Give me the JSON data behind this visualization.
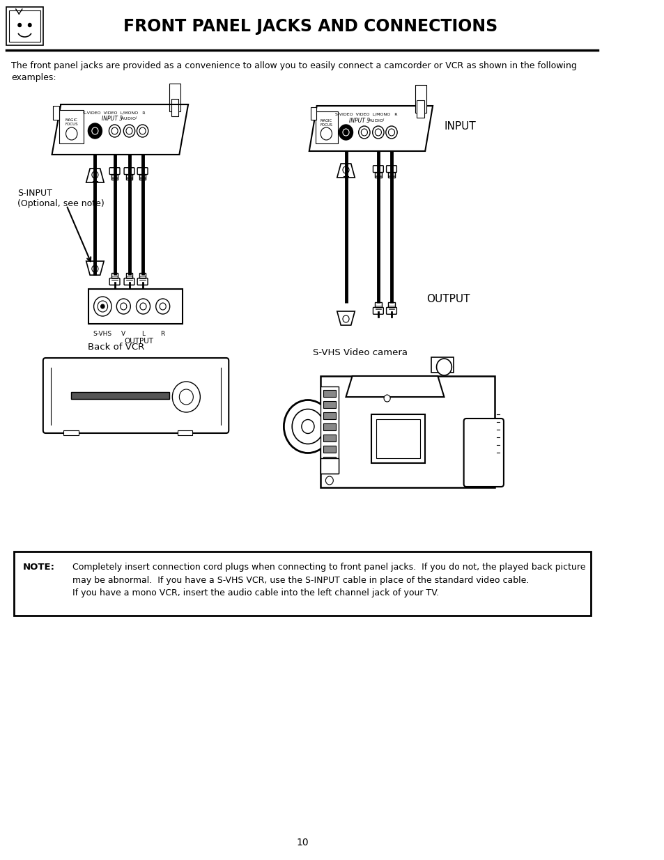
{
  "title": "FRONT PANEL JACKS AND CONNECTIONS",
  "page_number": "10",
  "intro_text": "The front panel jacks are provided as a convenience to allow you to easily connect a camcorder or VCR as shown in the following\nexamples:",
  "note_label": "NOTE:",
  "note_text": "Completely insert connection cord plugs when connecting to front panel jacks.  If you do not, the played back picture\nmay be abnormal.  If you have a S-VHS VCR, use the S-INPUT cable in place of the standard video cable.\nIf you have a mono VCR, insert the audio cable into the left channel jack of your TV.",
  "left_label": "S-INPUT\n(Optional, see note)",
  "left_caption": "Back of VCR",
  "right_input_label": "INPUT",
  "right_output_label": "OUTPUT",
  "right_caption": "S-VHS Video camera",
  "bg_color": "#ffffff",
  "text_color": "#000000"
}
